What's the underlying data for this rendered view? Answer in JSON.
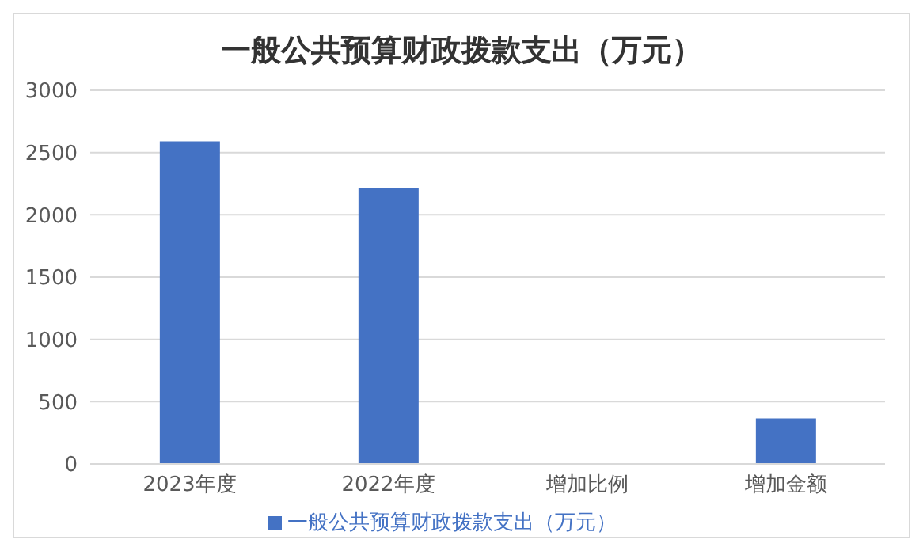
{
  "chart_data": {
    "type": "bar",
    "title": "一般公共预算财政拨款支出（万元）",
    "categories": [
      "2023年度",
      "2022年度",
      "增加比例",
      "增加金额"
    ],
    "series": [
      {
        "name": "一般公共预算财政拨款支出（万元）",
        "color": "#4472c4",
        "values": [
          2590,
          2215,
          0,
          365
        ]
      }
    ],
    "ylim": [
      0,
      3000
    ],
    "yticks": [
      0,
      500,
      1000,
      1500,
      2000,
      2500,
      3000
    ],
    "grid": "y",
    "legend": "bottom"
  }
}
